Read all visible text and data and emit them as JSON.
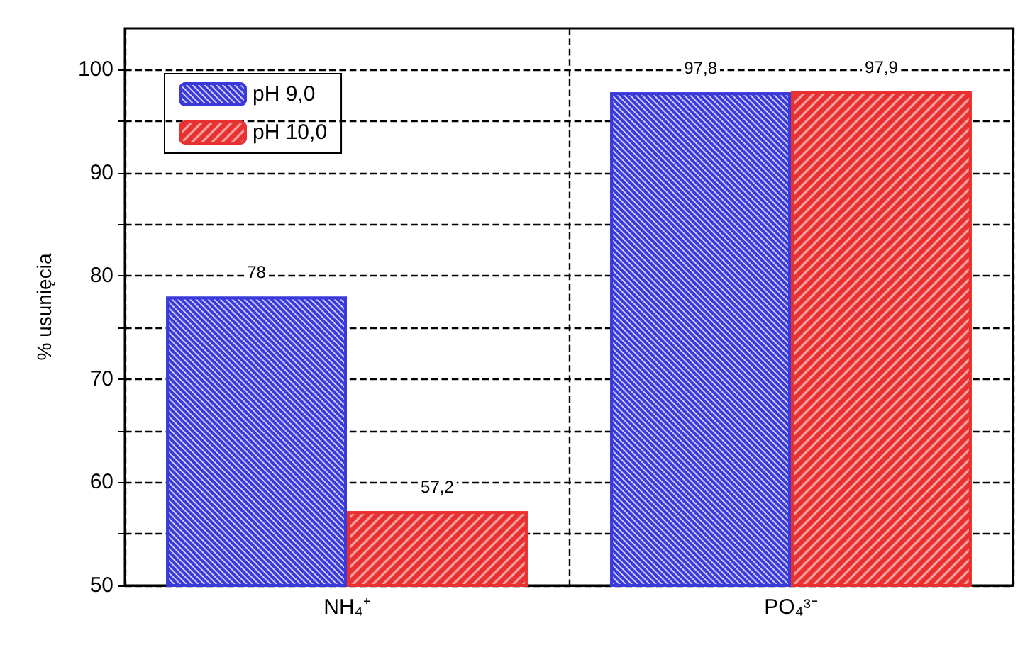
{
  "chart_data": {
    "type": "bar",
    "ylabel": "% usunięcia",
    "categories": [
      "NH₄⁺",
      "PO₄³⁻"
    ],
    "series": [
      {
        "name": "pH 9,0",
        "color": "#3a3adc",
        "values": [
          78,
          97.8
        ],
        "value_labels": [
          "78",
          "97,8"
        ]
      },
      {
        "name": "pH 10,0",
        "color": "#e83030",
        "values": [
          57.2,
          97.9
        ],
        "value_labels": [
          "57,2",
          "97,9"
        ]
      }
    ],
    "ylim": [
      50,
      104
    ],
    "yticks": [
      50,
      {
        "value": 55,
        "label": null
      },
      60,
      {
        "value": 65,
        "label": null
      },
      70,
      {
        "value": 75,
        "label": null
      },
      80,
      {
        "value": 85,
        "label": null
      },
      90,
      {
        "value": 95,
        "label": null
      },
      100
    ],
    "grid": true,
    "legend": "top left"
  }
}
